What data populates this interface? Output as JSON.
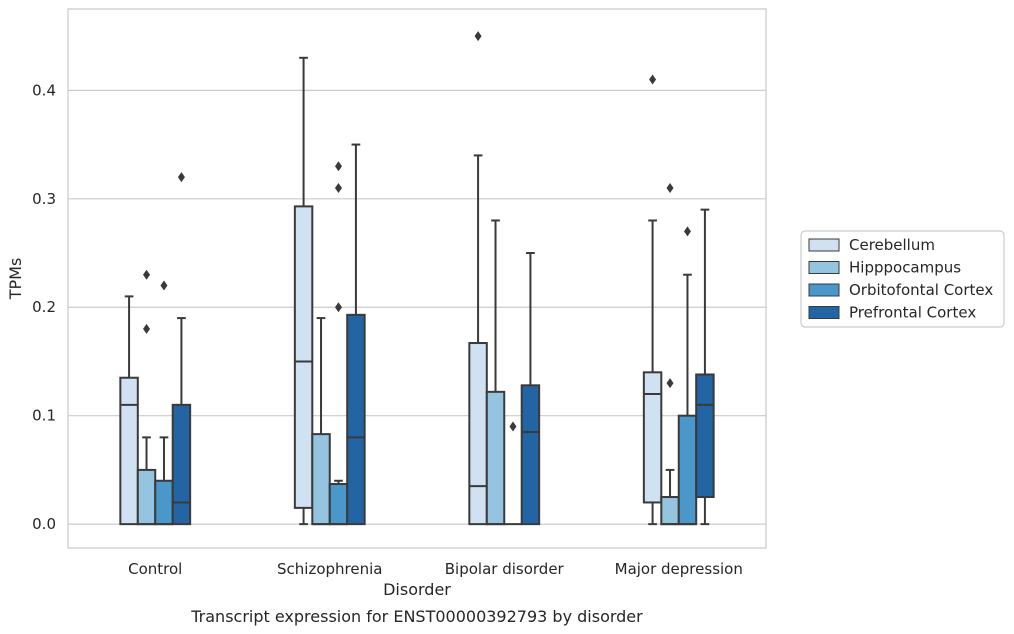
{
  "chart_data": {
    "type": "box",
    "xlabel": "Disorder",
    "ylabel": "TPMs",
    "caption": "Transcript expression for ENST00000392793 by disorder",
    "ylim": [
      -0.022,
      0.475
    ],
    "yticks": [
      0.0,
      0.1,
      0.2,
      0.3,
      0.4
    ],
    "ytick_labels": [
      "0.0",
      "0.1",
      "0.2",
      "0.3",
      "0.4"
    ],
    "grid": "horizontal",
    "legend_position": "right",
    "categories": [
      "Control",
      "Schizophrenia",
      "Bipolar disorder",
      "Major depression"
    ],
    "series": [
      {
        "name": "Cerebellum",
        "color": "#d0e1f2",
        "boxes": [
          {
            "whisker_low": 0.0,
            "q1": 0.0,
            "median": 0.11,
            "q3": 0.135,
            "whisker_high": 0.21,
            "outliers": []
          },
          {
            "whisker_low": 0.0,
            "q1": 0.015,
            "median": 0.15,
            "q3": 0.293,
            "whisker_high": 0.43,
            "outliers": []
          },
          {
            "whisker_low": 0.0,
            "q1": 0.0,
            "median": 0.035,
            "q3": 0.167,
            "whisker_high": 0.34,
            "outliers": [
              0.45
            ]
          },
          {
            "whisker_low": 0.0,
            "q1": 0.02,
            "median": 0.12,
            "q3": 0.14,
            "whisker_high": 0.28,
            "outliers": [
              0.41
            ]
          }
        ]
      },
      {
        "name": "Hipppocampus",
        "color": "#94c4df",
        "boxes": [
          {
            "whisker_low": 0.0,
            "q1": 0.0,
            "median": 0.0,
            "q3": 0.05,
            "whisker_high": 0.08,
            "outliers": [
              0.18,
              0.23
            ]
          },
          {
            "whisker_low": 0.0,
            "q1": 0.0,
            "median": 0.0,
            "q3": 0.083,
            "whisker_high": 0.19,
            "outliers": []
          },
          {
            "whisker_low": 0.0,
            "q1": 0.0,
            "median": 0.0,
            "q3": 0.122,
            "whisker_high": 0.28,
            "outliers": []
          },
          {
            "whisker_low": 0.0,
            "q1": 0.0,
            "median": 0.0,
            "q3": 0.025,
            "whisker_high": 0.05,
            "outliers": [
              0.13,
              0.31
            ]
          }
        ]
      },
      {
        "name": "Orbitofontal Cortex",
        "color": "#4a98c9",
        "boxes": [
          {
            "whisker_low": 0.0,
            "q1": 0.0,
            "median": 0.0,
            "q3": 0.04,
            "whisker_high": 0.08,
            "outliers": [
              0.22
            ]
          },
          {
            "whisker_low": 0.0,
            "q1": 0.0,
            "median": 0.0,
            "q3": 0.037,
            "whisker_high": 0.04,
            "outliers": [
              0.2,
              0.31,
              0.33
            ]
          },
          {
            "whisker_low": 0.0,
            "q1": 0.0,
            "median": 0.0,
            "q3": 0.0,
            "whisker_high": 0.0,
            "outliers": [
              0.09
            ]
          },
          {
            "whisker_low": 0.0,
            "q1": 0.0,
            "median": 0.0,
            "q3": 0.1,
            "whisker_high": 0.23,
            "outliers": [
              0.27
            ]
          }
        ]
      },
      {
        "name": "Prefrontal Cortex",
        "color": "#2264a4",
        "boxes": [
          {
            "whisker_low": 0.0,
            "q1": 0.0,
            "median": 0.02,
            "q3": 0.11,
            "whisker_high": 0.19,
            "outliers": [
              0.32
            ]
          },
          {
            "whisker_low": 0.0,
            "q1": 0.0,
            "median": 0.08,
            "q3": 0.193,
            "whisker_high": 0.35,
            "outliers": []
          },
          {
            "whisker_low": 0.0,
            "q1": 0.0,
            "median": 0.085,
            "q3": 0.128,
            "whisker_high": 0.25,
            "outliers": []
          },
          {
            "whisker_low": 0.0,
            "q1": 0.025,
            "median": 0.11,
            "q3": 0.138,
            "whisker_high": 0.29,
            "outliers": []
          }
        ]
      }
    ]
  }
}
